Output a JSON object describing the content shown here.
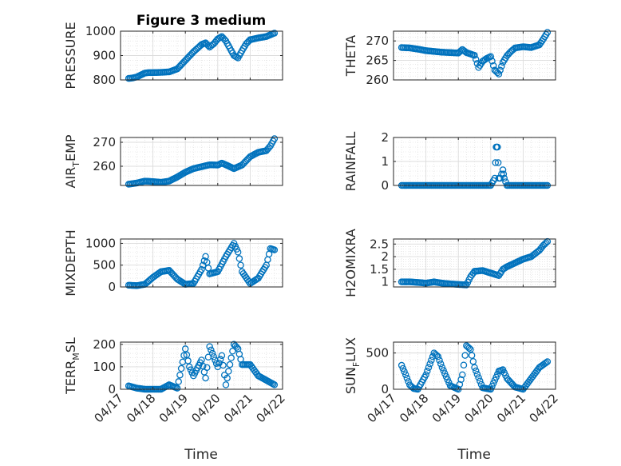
{
  "figure_title": "Figure 3 medium",
  "x_axis_label": "Time",
  "marker_color": "#0072BD",
  "chart_data": [
    {
      "type": "scatter",
      "ylabel": "PRESSURE",
      "title": "Figure 3 medium",
      "xlim": [
        "2023-04-17",
        "2023-04-22"
      ],
      "ylim": [
        800,
        1000
      ],
      "yticks": [
        800,
        900,
        1000
      ],
      "grid": true,
      "minor_grid": true,
      "xticks": [
        "04/17",
        "04/18",
        "04/19",
        "04/20",
        "04/21",
        "04/22"
      ],
      "show_xtick_labels": false,
      "points": [
        [
          "04/17 06:00",
          806
        ],
        [
          "04/17 09:00",
          808
        ],
        [
          "04/17 12:00",
          812
        ],
        [
          "04/17 15:00",
          820
        ],
        [
          "04/17 18:00",
          828
        ],
        [
          "04/17 21:00",
          830
        ],
        [
          "04/18 00:00",
          830
        ],
        [
          "04/18 06:00",
          831
        ],
        [
          "04/18 12:00",
          833
        ],
        [
          "04/18 18:00",
          845
        ],
        [
          "04/19 00:00",
          880
        ],
        [
          "04/19 06:00",
          915
        ],
        [
          "04/19 12:00",
          945
        ],
        [
          "04/19 15:00",
          952
        ],
        [
          "04/19 18:00",
          935
        ],
        [
          "04/19 21:00",
          948
        ],
        [
          "04/20 00:00",
          968
        ],
        [
          "04/20 03:00",
          978
        ],
        [
          "04/20 06:00",
          960
        ],
        [
          "04/20 09:00",
          930
        ],
        [
          "04/20 12:00",
          900
        ],
        [
          "04/20 15:00",
          890
        ],
        [
          "04/20 18:00",
          920
        ],
        [
          "04/20 21:00",
          948
        ],
        [
          "04/21 00:00",
          965
        ],
        [
          "04/21 06:00",
          972
        ],
        [
          "04/21 12:00",
          978
        ],
        [
          "04/21 18:00",
          992
        ]
      ]
    },
    {
      "type": "scatter",
      "ylabel": "THETA",
      "xlim": [
        "2023-04-17",
        "2023-04-22"
      ],
      "ylim": [
        260,
        272.5
      ],
      "yticks": [
        260,
        265,
        270
      ],
      "grid": true,
      "minor_grid": true,
      "xticks": [
        "04/17",
        "04/18",
        "04/19",
        "04/20",
        "04/21",
        "04/22"
      ],
      "show_xtick_labels": false,
      "points": [
        [
          "04/17 06:00",
          268.3
        ],
        [
          "04/17 12:00",
          268.2
        ],
        [
          "04/17 18:00",
          267.9
        ],
        [
          "04/18 00:00",
          267.5
        ],
        [
          "04/18 06:00",
          267.3
        ],
        [
          "04/18 12:00",
          267.1
        ],
        [
          "04/18 18:00",
          267.0
        ],
        [
          "04/19 00:00",
          266.9
        ],
        [
          "04/19 03:00",
          267.8
        ],
        [
          "04/19 06:00",
          267.0
        ],
        [
          "04/19 12:00",
          266.3
        ],
        [
          "04/19 15:00",
          263.2
        ],
        [
          "04/19 18:00",
          264.8
        ],
        [
          "04/19 21:00",
          265.5
        ],
        [
          "04/20 00:00",
          266.0
        ],
        [
          "04/20 03:00",
          262.5
        ],
        [
          "04/20 06:00",
          261.5
        ],
        [
          "04/20 09:00",
          264.5
        ],
        [
          "04/20 12:00",
          266.2
        ],
        [
          "04/20 15:00",
          267.3
        ],
        [
          "04/20 18:00",
          268.2
        ],
        [
          "04/21 00:00",
          268.5
        ],
        [
          "04/21 06:00",
          268.3
        ],
        [
          "04/21 12:00",
          269.0
        ],
        [
          "04/21 15:00",
          270.5
        ],
        [
          "04/21 18:00",
          272.2
        ]
      ]
    },
    {
      "type": "scatter",
      "ylabel": "AIR_TEMP",
      "ylabel_main": "AIR",
      "ylabel_sub": "T",
      "ylabel_rest": "EMP",
      "xlim": [
        "2023-04-17",
        "2023-04-22"
      ],
      "ylim": [
        252,
        272
      ],
      "yticks": [
        260,
        270
      ],
      "grid": true,
      "minor_grid": true,
      "xticks": [
        "04/17",
        "04/18",
        "04/19",
        "04/20",
        "04/21",
        "04/22"
      ],
      "show_xtick_labels": false,
      "points": [
        [
          "04/17 06:00",
          252.5
        ],
        [
          "04/17 12:00",
          253.0
        ],
        [
          "04/17 18:00",
          253.8
        ],
        [
          "04/18 00:00",
          253.6
        ],
        [
          "04/18 06:00",
          253.3
        ],
        [
          "04/18 12:00",
          253.8
        ],
        [
          "04/18 18:00",
          255.5
        ],
        [
          "04/19 00:00",
          257.5
        ],
        [
          "04/19 06:00",
          259.0
        ],
        [
          "04/19 12:00",
          259.8
        ],
        [
          "04/19 18:00",
          260.6
        ],
        [
          "04/20 00:00",
          260.5
        ],
        [
          "04/20 03:00",
          261.3
        ],
        [
          "04/20 06:00",
          260.6
        ],
        [
          "04/20 12:00",
          259.0
        ],
        [
          "04/20 18:00",
          260.5
        ],
        [
          "04/21 00:00",
          264.0
        ],
        [
          "04/21 06:00",
          265.8
        ],
        [
          "04/21 12:00",
          266.5
        ],
        [
          "04/21 15:00",
          268.5
        ],
        [
          "04/21 18:00",
          271.5
        ]
      ]
    },
    {
      "type": "scatter",
      "ylabel": "RAINFALL",
      "xlim": [
        "2023-04-17",
        "2023-04-22"
      ],
      "ylim": [
        0,
        2
      ],
      "yticks": [
        0,
        1,
        2
      ],
      "grid": true,
      "minor_grid": true,
      "xticks": [
        "04/17",
        "04/18",
        "04/19",
        "04/20",
        "04/21",
        "04/22"
      ],
      "show_xtick_labels": false,
      "points": [
        [
          "04/17 06:00",
          0
        ],
        [
          "04/17 12:00",
          0
        ],
        [
          "04/17 18:00",
          0
        ],
        [
          "04/18 00:00",
          0
        ],
        [
          "04/18 06:00",
          0
        ],
        [
          "04/18 12:00",
          0
        ],
        [
          "04/18 18:00",
          0
        ],
        [
          "04/19 00:00",
          0
        ],
        [
          "04/19 06:00",
          0
        ],
        [
          "04/19 12:00",
          0
        ],
        [
          "04/19 18:00",
          0
        ],
        [
          "04/20 00:00",
          0
        ],
        [
          "04/20 03:00",
          0.3
        ],
        [
          "04/20 04:00",
          1.6
        ],
        [
          "04/20 05:00",
          1.6
        ],
        [
          "04/20 06:00",
          0.3
        ],
        [
          "04/20 07:00",
          0.3
        ],
        [
          "04/20 09:00",
          0.65
        ],
        [
          "04/20 10:00",
          0.3
        ],
        [
          "04/20 12:00",
          0
        ],
        [
          "04/20 18:00",
          0
        ],
        [
          "04/21 00:00",
          0
        ],
        [
          "04/21 06:00",
          0
        ],
        [
          "04/21 12:00",
          0
        ],
        [
          "04/21 18:00",
          0
        ]
      ]
    },
    {
      "type": "scatter",
      "ylabel": "MIXDEPTH",
      "xlim": [
        "2023-04-17",
        "2023-04-22"
      ],
      "ylim": [
        0,
        1100
      ],
      "yticks": [
        0,
        500,
        1000
      ],
      "grid": true,
      "minor_grid": true,
      "xticks": [
        "04/17",
        "04/18",
        "04/19",
        "04/20",
        "04/21",
        "04/22"
      ],
      "show_xtick_labels": false,
      "points": [
        [
          "04/17 06:00",
          40
        ],
        [
          "04/17 12:00",
          30
        ],
        [
          "04/17 18:00",
          60
        ],
        [
          "04/18 00:00",
          220
        ],
        [
          "04/18 06:00",
          350
        ],
        [
          "04/18 12:00",
          380
        ],
        [
          "04/18 18:00",
          180
        ],
        [
          "04/19 00:00",
          60
        ],
        [
          "04/19 06:00",
          80
        ],
        [
          "04/19 12:00",
          400
        ],
        [
          "04/19 15:00",
          700
        ],
        [
          "04/19 18:00",
          300
        ],
        [
          "04/20 00:00",
          350
        ],
        [
          "04/20 06:00",
          700
        ],
        [
          "04/20 12:00",
          1000
        ],
        [
          "04/20 15:00",
          800
        ],
        [
          "04/20 18:00",
          350
        ],
        [
          "04/21 00:00",
          80
        ],
        [
          "04/21 06:00",
          200
        ],
        [
          "04/21 12:00",
          500
        ],
        [
          "04/21 15:00",
          880
        ],
        [
          "04/21 18:00",
          850
        ]
      ]
    },
    {
      "type": "scatter",
      "ylabel": "H2OMIXRA",
      "xlim": [
        "2023-04-17",
        "2023-04-22"
      ],
      "ylim": [
        0.8,
        2.7
      ],
      "yticks": [
        1,
        1.5,
        2,
        2.5
      ],
      "grid": true,
      "minor_grid": true,
      "xticks": [
        "04/17",
        "04/18",
        "04/19",
        "04/20",
        "04/21",
        "04/22"
      ],
      "show_xtick_labels": false,
      "points": [
        [
          "04/17 06:00",
          1.0
        ],
        [
          "04/17 12:00",
          1.0
        ],
        [
          "04/17 18:00",
          0.98
        ],
        [
          "04/18 00:00",
          0.95
        ],
        [
          "04/18 06:00",
          1.0
        ],
        [
          "04/18 12:00",
          0.95
        ],
        [
          "04/18 18:00",
          0.92
        ],
        [
          "04/19 00:00",
          0.9
        ],
        [
          "04/19 06:00",
          0.88
        ],
        [
          "04/19 09:00",
          1.2
        ],
        [
          "04/19 12:00",
          1.42
        ],
        [
          "04/19 18:00",
          1.45
        ],
        [
          "04/20 00:00",
          1.35
        ],
        [
          "04/20 06:00",
          1.25
        ],
        [
          "04/20 09:00",
          1.5
        ],
        [
          "04/20 12:00",
          1.6
        ],
        [
          "04/20 18:00",
          1.75
        ],
        [
          "04/21 00:00",
          1.9
        ],
        [
          "04/21 06:00",
          2.0
        ],
        [
          "04/21 12:00",
          2.25
        ],
        [
          "04/21 15:00",
          2.45
        ],
        [
          "04/21 18:00",
          2.6
        ]
      ]
    },
    {
      "type": "scatter",
      "ylabel": "TERR_MSL",
      "ylabel_main": "TERR",
      "ylabel_sub": "M",
      "ylabel_rest": "SL",
      "xlim": [
        "2023-04-17",
        "2023-04-22"
      ],
      "ylim": [
        0,
        210
      ],
      "yticks": [
        0,
        100,
        200
      ],
      "grid": true,
      "minor_grid": true,
      "xticks": [
        "04/17",
        "04/18",
        "04/19",
        "04/20",
        "04/21",
        "04/22"
      ],
      "show_xtick_labels": true,
      "points": [
        [
          "04/17 06:00",
          15
        ],
        [
          "04/17 12:00",
          5
        ],
        [
          "04/17 18:00",
          0
        ],
        [
          "04/18 00:00",
          0
        ],
        [
          "04/18 06:00",
          0
        ],
        [
          "04/18 12:00",
          20
        ],
        [
          "04/18 18:00",
          5
        ],
        [
          "04/19 00:00",
          180
        ],
        [
          "04/19 03:00",
          100
        ],
        [
          "04/19 06:00",
          60
        ],
        [
          "04/19 12:00",
          130
        ],
        [
          "04/19 15:00",
          50
        ],
        [
          "04/19 18:00",
          190
        ],
        [
          "04/20 00:00",
          100
        ],
        [
          "04/20 03:00",
          150
        ],
        [
          "04/20 06:00",
          20
        ],
        [
          "04/20 12:00",
          200
        ],
        [
          "04/20 15:00",
          180
        ],
        [
          "04/20 18:00",
          110
        ],
        [
          "04/21 00:00",
          110
        ],
        [
          "04/21 06:00",
          60
        ],
        [
          "04/21 12:00",
          40
        ],
        [
          "04/21 18:00",
          20
        ]
      ]
    },
    {
      "type": "scatter",
      "ylabel": "SUN_FLUX",
      "ylabel_main": "SUN",
      "ylabel_sub": "F",
      "ylabel_rest": "LUX",
      "xlim": [
        "2023-04-17",
        "2023-04-22"
      ],
      "ylim": [
        0,
        650
      ],
      "yticks": [
        0,
        500
      ],
      "grid": true,
      "minor_grid": true,
      "xticks": [
        "04/17",
        "04/18",
        "04/19",
        "04/20",
        "04/21",
        "04/22"
      ],
      "show_xtick_labels": true,
      "points": [
        [
          "04/17 06:00",
          330
        ],
        [
          "04/17 09:00",
          200
        ],
        [
          "04/17 12:00",
          60
        ],
        [
          "04/17 15:00",
          10
        ],
        [
          "04/17 18:00",
          0
        ],
        [
          "04/18 00:00",
          200
        ],
        [
          "04/18 06:00",
          500
        ],
        [
          "04/18 09:00",
          450
        ],
        [
          "04/18 12:00",
          300
        ],
        [
          "04/18 18:00",
          50
        ],
        [
          "04/19 00:00",
          0
        ],
        [
          "04/19 03:00",
          200
        ],
        [
          "04/19 06:00",
          600
        ],
        [
          "04/19 09:00",
          550
        ],
        [
          "04/19 12:00",
          300
        ],
        [
          "04/19 18:00",
          20
        ],
        [
          "04/20 00:00",
          0
        ],
        [
          "04/20 06:00",
          250
        ],
        [
          "04/20 09:00",
          270
        ],
        [
          "04/20 12:00",
          150
        ],
        [
          "04/20 18:00",
          30
        ],
        [
          "04/21 00:00",
          0
        ],
        [
          "04/21 06:00",
          150
        ],
        [
          "04/21 12:00",
          300
        ],
        [
          "04/21 18:00",
          380
        ]
      ]
    }
  ]
}
